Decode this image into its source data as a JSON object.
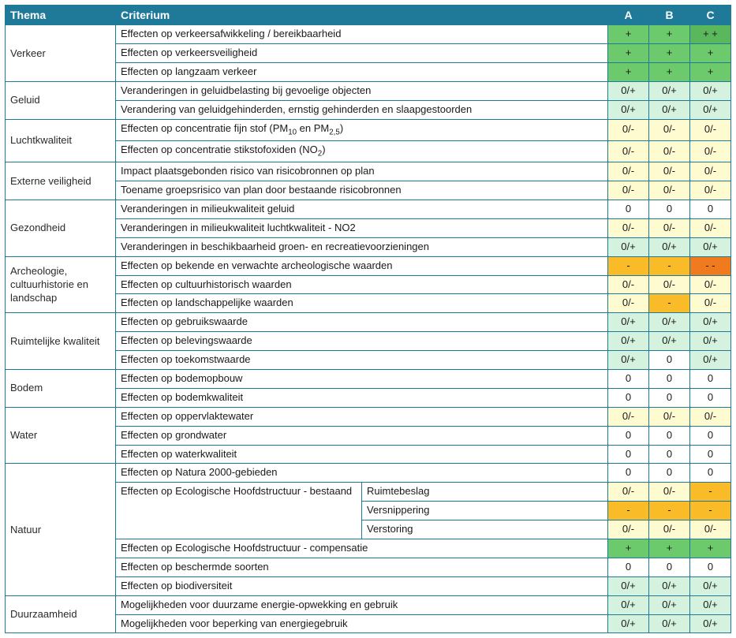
{
  "header": {
    "thema": "Thema",
    "criterium": "Criterium",
    "A": "A",
    "B": "B",
    "C": "C"
  },
  "colors": {
    "border": "#1f7a99",
    "header_bg": "#1f7a99",
    "header_text": "#ffffff",
    "bg_white": "#ffffff",
    "++": "#5bb75b",
    "+": "#6cc96c",
    "0+": "#d5f2df",
    "0": "#ffffff",
    "0-": "#fffbd1",
    "-": "#f9bb28",
    "--": "#f07a1e"
  },
  "themes": [
    {
      "name": "Verkeer",
      "criteria": [
        {
          "text": "Effecten op verkeersafwikkeling / bereikbaarheid",
          "A": "+",
          "B": "+",
          "C": "+ +"
        },
        {
          "text": "Effecten op verkeersveiligheid",
          "A": "+",
          "B": "+",
          "C": "+"
        },
        {
          "text": "Effecten op langzaam verkeer",
          "A": "+",
          "B": "+",
          "C": "+"
        }
      ]
    },
    {
      "name": "Geluid",
      "criteria": [
        {
          "text": "Veranderingen in geluidbelasting bij gevoelige objecten",
          "A": "0/+",
          "B": "0/+",
          "C": "0/+"
        },
        {
          "text": "Verandering van geluidgehinderden, ernstig gehinderden en slaapgestoorden",
          "A": "0/+",
          "B": "0/+",
          "C": "0/+"
        }
      ]
    },
    {
      "name": "Luchtkwaliteit",
      "criteria": [
        {
          "html": "Effecten op concentratie fijn stof (PM<sub>10</sub> en PM<sub>2,5</sub>)",
          "A": "0/-",
          "B": "0/-",
          "C": "0/-"
        },
        {
          "html": "Effecten op concentratie stikstofoxiden (NO<sub>2</sub>)",
          "A": "0/-",
          "B": "0/-",
          "C": "0/-"
        }
      ]
    },
    {
      "name": "Externe veiligheid",
      "criteria": [
        {
          "text": "Impact plaatsgebonden risico van risicobronnen op plan",
          "A": "0/-",
          "B": "0/-",
          "C": "0/-"
        },
        {
          "text": "Toename groepsrisico van plan door bestaande risicobronnen",
          "A": "0/-",
          "B": "0/-",
          "C": "0/-"
        }
      ]
    },
    {
      "name": "Gezondheid",
      "criteria": [
        {
          "text": "Veranderingen in milieukwaliteit geluid",
          "A": "0",
          "B": "0",
          "C": "0"
        },
        {
          "text": "Veranderingen in milieukwaliteit luchtkwaliteit - NO2",
          "A": "0/-",
          "B": "0/-",
          "C": "0/-"
        },
        {
          "text": "Veranderingen in beschikbaarheid groen- en recreatievoorzieningen",
          "A": "0/+",
          "B": "0/+",
          "C": "0/+"
        }
      ]
    },
    {
      "name": "Archeologie, cultuurhistorie en landschap",
      "criteria": [
        {
          "text": "Effecten op bekende en verwachte archeologische waarden",
          "A": "-",
          "B": "-",
          "C": "- -"
        },
        {
          "text": "Effecten op cultuurhistorisch waarden",
          "A": "0/-",
          "B": "0/-",
          "C": "0/-"
        },
        {
          "text": "Effecten op landschappelijke waarden",
          "A": "0/-",
          "B": "-",
          "C": "0/-"
        }
      ]
    },
    {
      "name": "Ruimtelijke kwaliteit",
      "criteria": [
        {
          "text": "Effecten op gebruikswaarde",
          "A": "0/+",
          "B": "0/+",
          "C": "0/+"
        },
        {
          "text": "Effecten op belevingswaarde",
          "A": "0/+",
          "B": "0/+",
          "C": "0/+"
        },
        {
          "text": "Effecten op toekomstwaarde",
          "A": "0/+",
          "B": "0",
          "C": "0/+"
        }
      ]
    },
    {
      "name": "Bodem",
      "criteria": [
        {
          "text": "Effecten op bodemopbouw",
          "A": "0",
          "B": "0",
          "C": "0"
        },
        {
          "text": "Effecten op bodemkwaliteit",
          "A": "0",
          "B": "0",
          "C": "0"
        }
      ]
    },
    {
      "name": "Water",
      "criteria": [
        {
          "text": "Effecten op oppervlaktewater",
          "A": "0/-",
          "B": "0/-",
          "C": "0/-"
        },
        {
          "text": "Effecten op grondwater",
          "A": "0",
          "B": "0",
          "C": "0"
        },
        {
          "text": "Effecten op waterkwaliteit",
          "A": "0",
          "B": "0",
          "C": "0"
        }
      ]
    },
    {
      "name": "Natuur",
      "criteria": [
        {
          "text": "Effecten op Natura 2000-gebieden",
          "A": "0",
          "B": "0",
          "C": "0"
        },
        {
          "text": "Effecten op Ecologische Hoofdstructuur - bestaand",
          "sub": [
            {
              "text": "Ruimtebeslag",
              "A": "0/-",
              "B": "0/-",
              "C": "-"
            },
            {
              "text": "Versnippering",
              "A": "-",
              "B": "-",
              "C": "-"
            },
            {
              "text": "Verstoring",
              "A": "0/-",
              "B": "0/-",
              "C": "0/-"
            }
          ]
        },
        {
          "text": "Effecten op Ecologische Hoofdstructuur - compensatie",
          "A": "+",
          "B": "+",
          "C": "+"
        },
        {
          "text": "Effecten op beschermde soorten",
          "A": "0",
          "B": "0",
          "C": "0"
        },
        {
          "text": "Effecten op biodiversiteit",
          "A": "0/+",
          "B": "0/+",
          "C": "0/+"
        }
      ]
    },
    {
      "name": "Duurzaamheid",
      "criteria": [
        {
          "text": "Mogelijkheden voor duurzame energie-opwekking en gebruik",
          "A": "0/+",
          "B": "0/+",
          "C": "0/+"
        },
        {
          "text": "Mogelijkheden voor beperking van energiegebruik",
          "A": "0/+",
          "B": "0/+",
          "C": "0/+"
        }
      ]
    }
  ]
}
